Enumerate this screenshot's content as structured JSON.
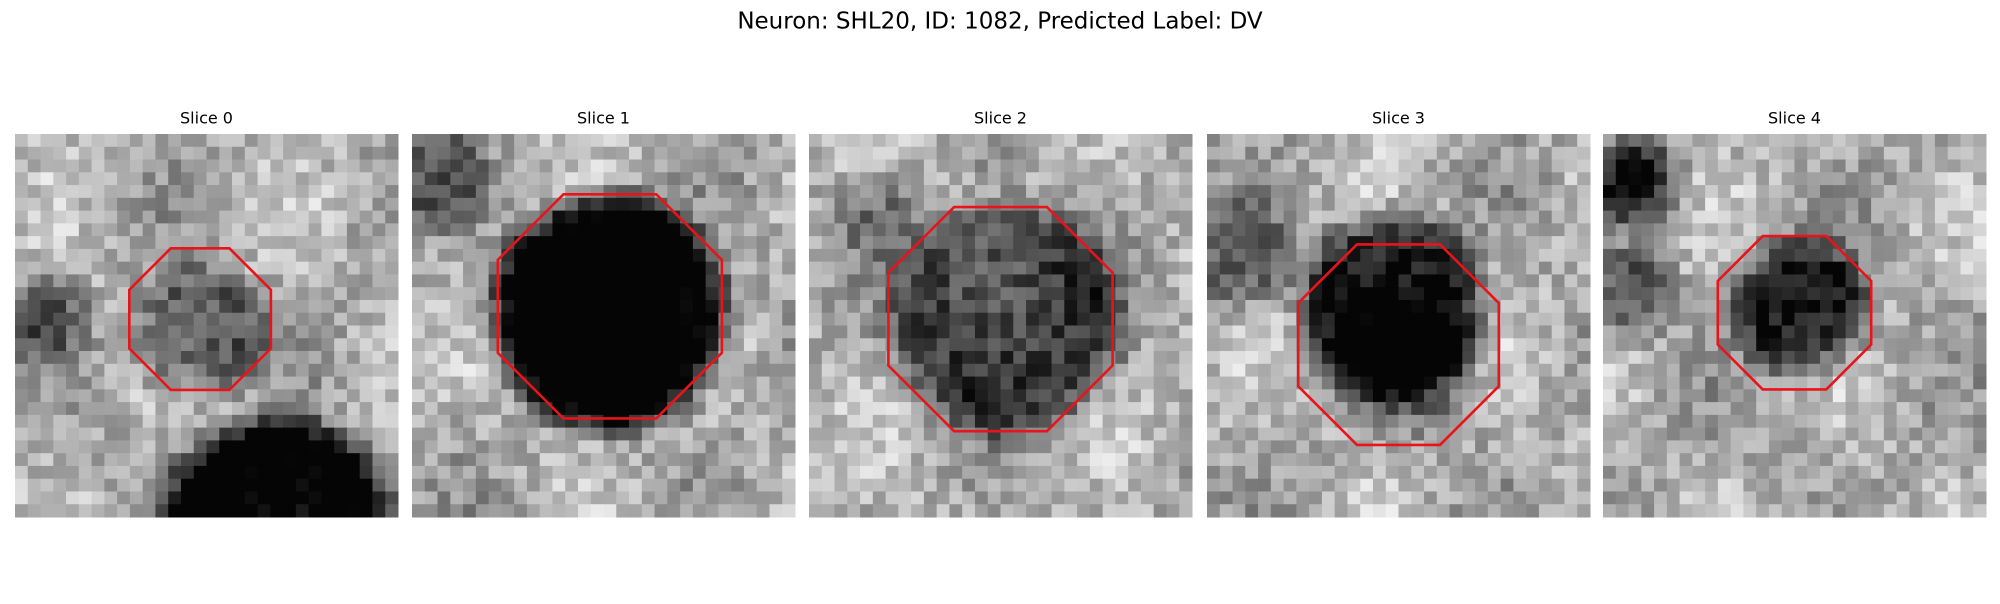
{
  "header": {
    "title": "Neuron: SHL20, ID: 1082, Predicted Label: DV"
  },
  "panels": [
    {
      "title": "Slice 0"
    },
    {
      "title": "Slice 1"
    },
    {
      "title": "Slice 2"
    },
    {
      "title": "Slice 3"
    },
    {
      "title": "Slice 4"
    }
  ]
}
